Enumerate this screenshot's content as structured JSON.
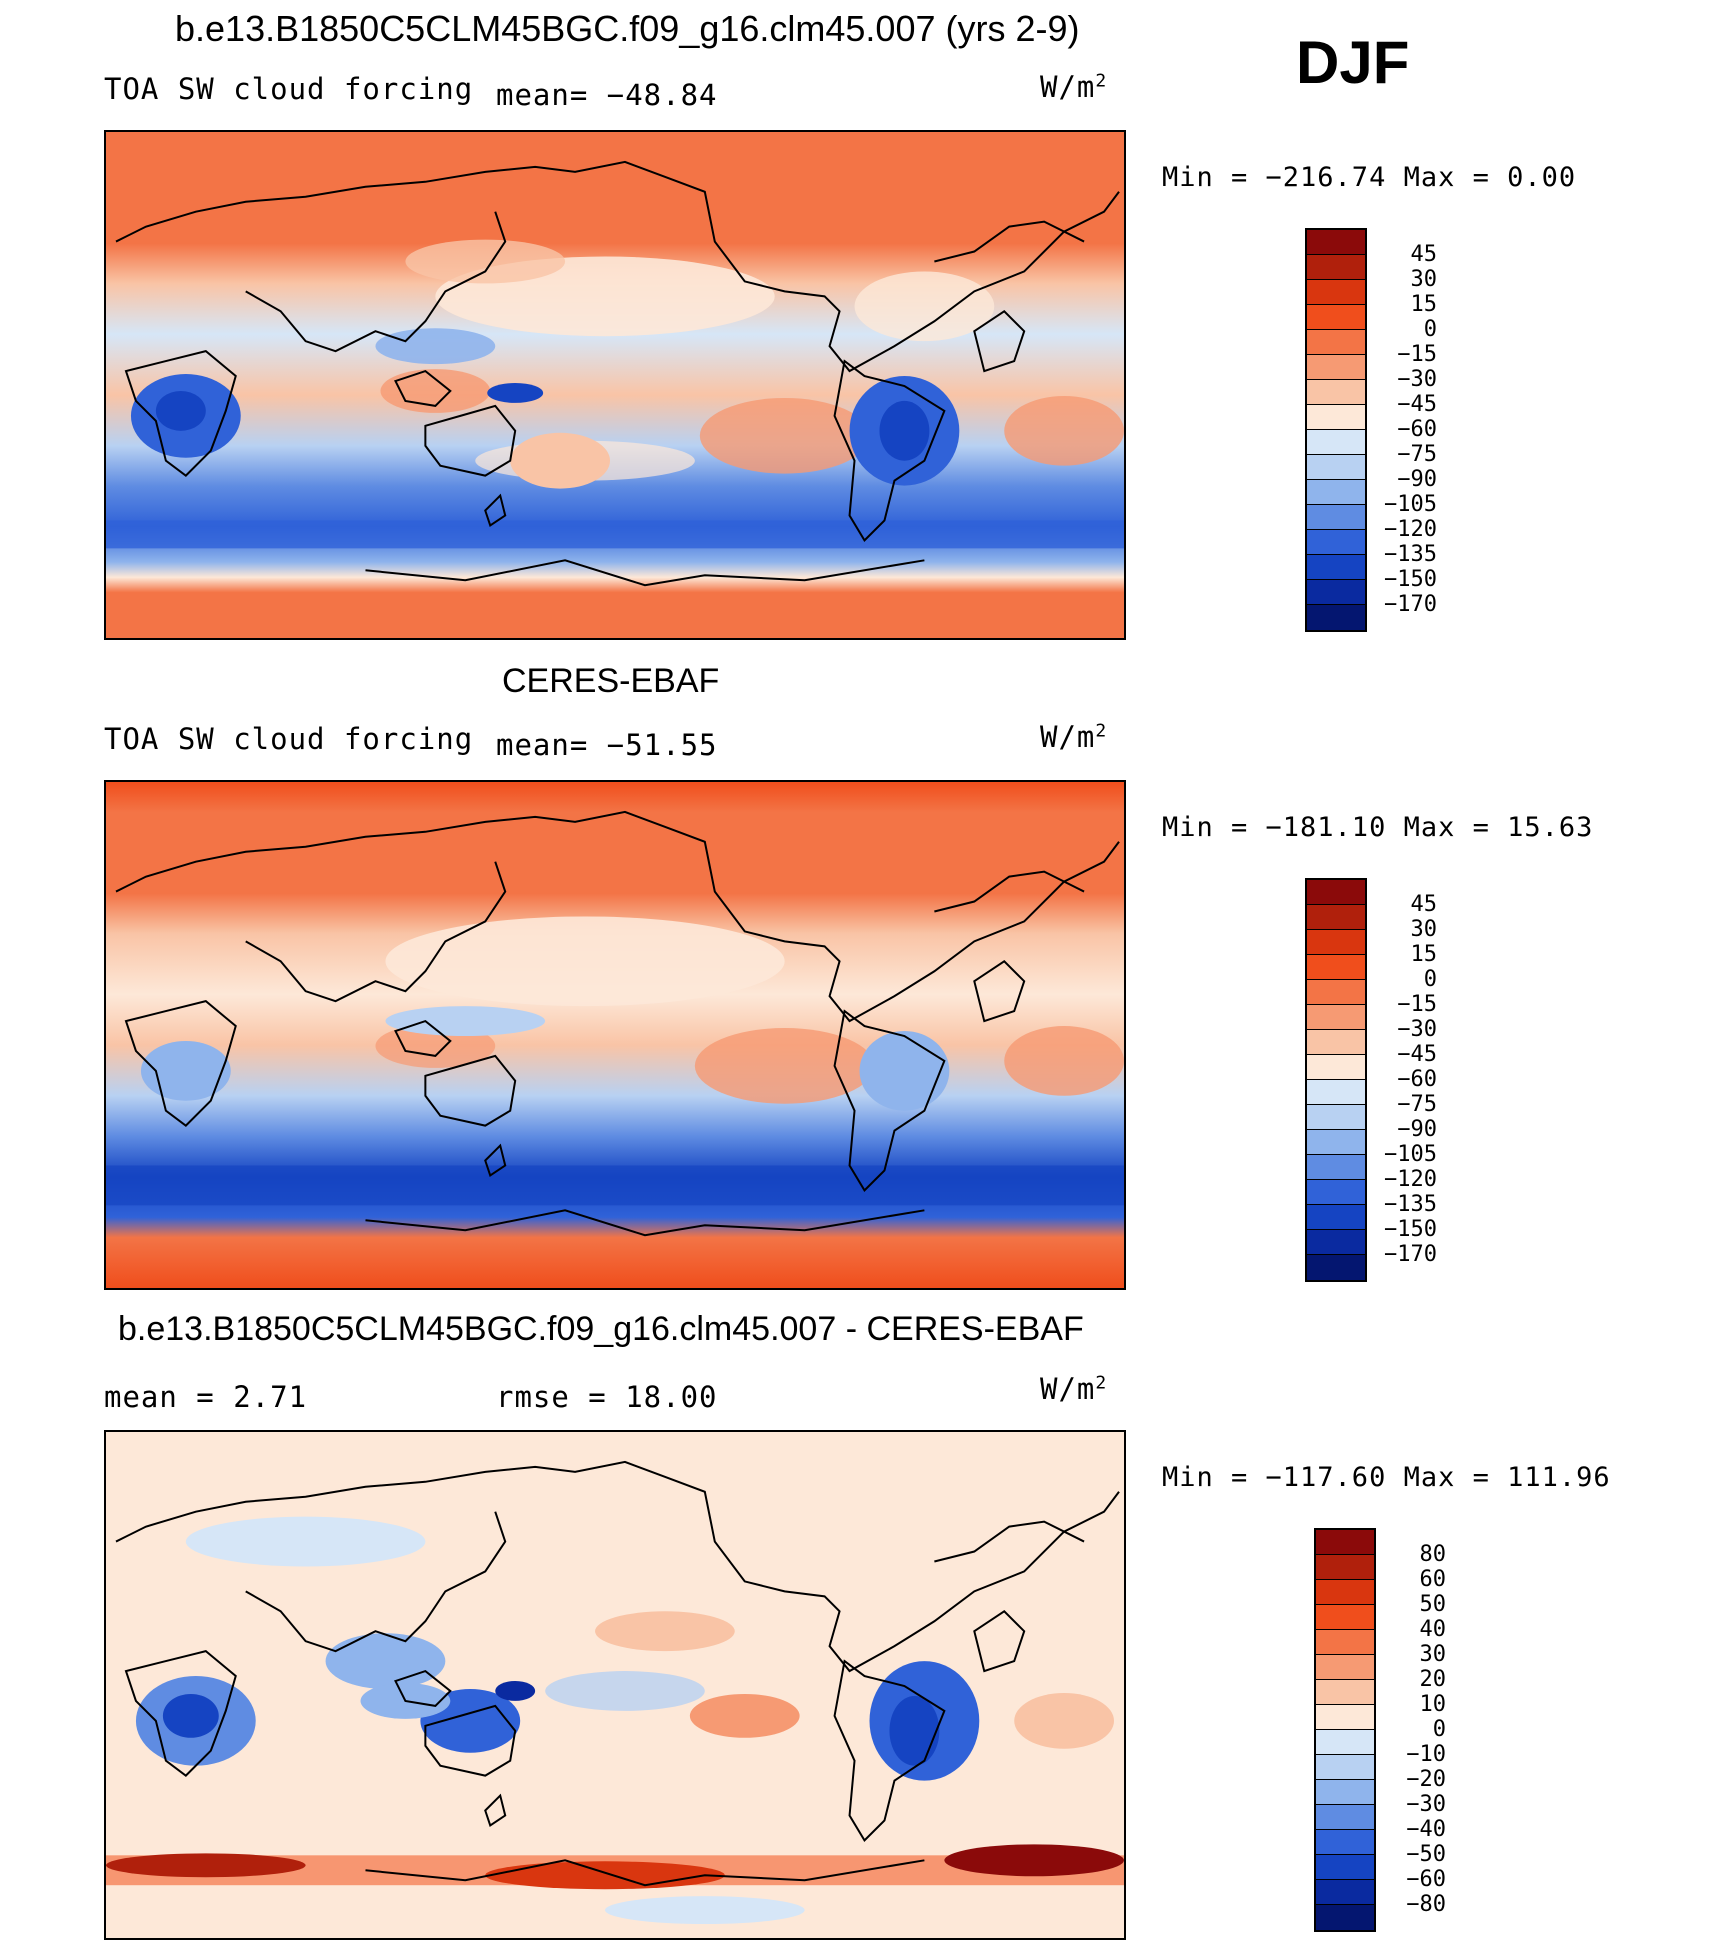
{
  "header": {
    "title": "b.e13.B1850C5CLM45BGC.f09_g16.clm45.007 (yrs 2-9)",
    "season": "DJF"
  },
  "panels": [
    {
      "title": "",
      "left_text": "TOA SW cloud forcing",
      "mid_text": "mean= −48.84",
      "units": "W/m",
      "units_sup": "2",
      "min_max": "Min = −216.74 Max =   0.00",
      "colorbar_labels": [
        "45",
        "30",
        "15",
        "0",
        "−15",
        "−30",
        "−45",
        "−60",
        "−75",
        "−90",
        "−105",
        "−120",
        "−135",
        "−150",
        "−170"
      ],
      "colorbar_colors": [
        "#8b0a0a",
        "#b0200c",
        "#d9360f",
        "#f04e1c",
        "#f37446",
        "#f69a73",
        "#f9c4a6",
        "#fde8d8",
        "#d6e6f7",
        "#b8d1f2",
        "#8fb4ec",
        "#5f8ce2",
        "#3062d8",
        "#1544c2",
        "#0a2aa0",
        "#041670"
      ]
    },
    {
      "title": "CERES-EBAF",
      "left_text": "TOA SW cloud forcing",
      "mid_text": "mean= −51.55",
      "units": "W/m",
      "units_sup": "2",
      "min_max": "Min = −181.10 Max =  15.63",
      "colorbar_labels": [
        "45",
        "30",
        "15",
        "0",
        "−15",
        "−30",
        "−45",
        "−60",
        "−75",
        "−90",
        "−105",
        "−120",
        "−135",
        "−150",
        "−170"
      ],
      "colorbar_colors": [
        "#8b0a0a",
        "#b0200c",
        "#d9360f",
        "#f04e1c",
        "#f37446",
        "#f69a73",
        "#f9c4a6",
        "#fde8d8",
        "#d6e6f7",
        "#b8d1f2",
        "#8fb4ec",
        "#5f8ce2",
        "#3062d8",
        "#1544c2",
        "#0a2aa0",
        "#041670"
      ]
    },
    {
      "title": "b.e13.B1850C5CLM45BGC.f09_g16.clm45.007 - CERES-EBAF",
      "left_text": "mean =    2.71",
      "mid_text": "rmse =   18.00",
      "units": "W/m",
      "units_sup": "2",
      "min_max": "Min = −117.60 Max = 111.96",
      "colorbar_labels": [
        "80",
        "60",
        "50",
        "40",
        "30",
        "20",
        "10",
        "0",
        "−10",
        "−20",
        "−30",
        "−40",
        "−50",
        "−60",
        "−80"
      ],
      "colorbar_colors": [
        "#8b0a0a",
        "#b0200c",
        "#d9360f",
        "#f04e1c",
        "#f37446",
        "#f69a73",
        "#f9c4a6",
        "#fde8d8",
        "#d6e6f7",
        "#b8d1f2",
        "#8fb4ec",
        "#5f8ce2",
        "#3062d8",
        "#1544c2",
        "#0a2aa0",
        "#041670"
      ]
    }
  ]
}
